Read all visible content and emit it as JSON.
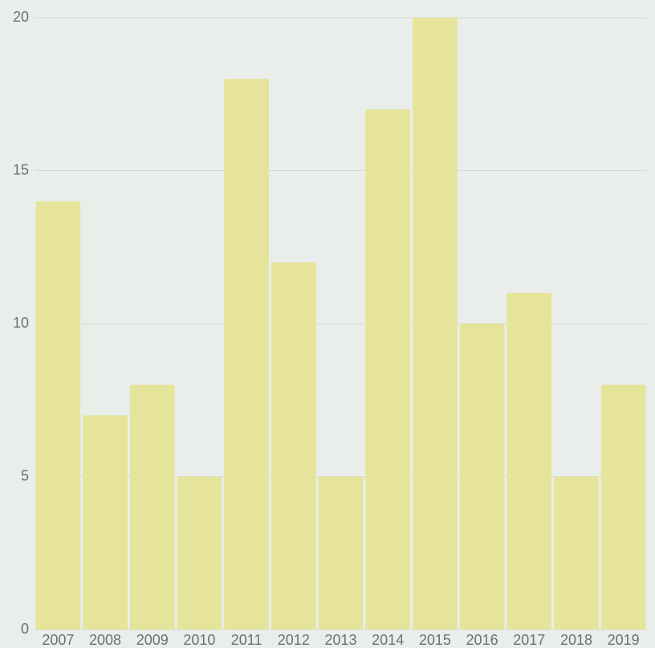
{
  "chart_data": {
    "type": "bar",
    "categories": [
      "2007",
      "2008",
      "2009",
      "2010",
      "2011",
      "2012",
      "2013",
      "2014",
      "2015",
      "2016",
      "2017",
      "2018",
      "2019"
    ],
    "values": [
      14,
      7,
      8,
      5,
      18,
      12,
      5,
      17,
      20,
      10,
      11,
      5,
      8
    ],
    "color": "#e5e49a",
    "ylim": [
      0,
      20
    ],
    "yticks": [
      0,
      5,
      10,
      15,
      20
    ],
    "grid": true
  }
}
